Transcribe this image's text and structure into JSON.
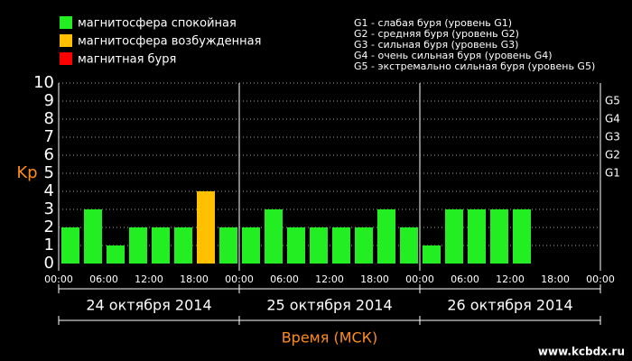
{
  "chart_data": {
    "type": "bar",
    "legend": [
      {
        "label": "магнитосфера спокойная",
        "color": "#22ee22"
      },
      {
        "label": "магнитосфера возбужденная",
        "color": "#ffc000"
      },
      {
        "label": "магнитная буря",
        "color": "#ff0000"
      }
    ],
    "storm_legend": [
      "G1 - слабая буря (уровень G1)",
      "G2 - средняя буря (уровень G2)",
      "G3 - сильная буря (уровень G3)",
      "G4 - очень сильная буря (уровень G4)",
      "G5 - экстремально сильная буря (уровень G5)"
    ],
    "y_label": "Kp",
    "x_label": "Время (МСК)",
    "values": [
      2,
      3,
      1,
      2,
      2,
      2,
      4,
      2,
      2,
      3,
      2,
      2,
      2,
      2,
      3,
      2,
      1,
      3,
      3,
      3,
      3,
      null,
      null,
      null
    ],
    "colors": [
      "#22ee22",
      "#22ee22",
      "#22ee22",
      "#22ee22",
      "#22ee22",
      "#22ee22",
      "#ffc000",
      "#22ee22",
      "#22ee22",
      "#22ee22",
      "#22ee22",
      "#22ee22",
      "#22ee22",
      "#22ee22",
      "#22ee22",
      "#22ee22",
      "#22ee22",
      "#22ee22",
      "#22ee22",
      "#22ee22",
      "#22ee22",
      null,
      null,
      null
    ],
    "ylim": [
      0,
      10
    ],
    "yticks": [
      0,
      1,
      2,
      3,
      4,
      5,
      6,
      7,
      8,
      9,
      10
    ],
    "g_ticks": [
      {
        "value": 5,
        "label": "G1"
      },
      {
        "value": 6,
        "label": "G2"
      },
      {
        "value": 7,
        "label": "G3"
      },
      {
        "value": 8,
        "label": "G4"
      },
      {
        "value": 9,
        "label": "G5"
      }
    ],
    "xticks": [
      "00:00",
      "06:00",
      "12:00",
      "18:00",
      "00:00",
      "06:00",
      "12:00",
      "18:00",
      "00:00",
      "06:00",
      "12:00",
      "18:00",
      "00:00"
    ],
    "days": [
      "24 октября 2014",
      "25 октября 2014",
      "26 октября 2014"
    ],
    "grid": true,
    "watermark": "www.kcbdx.ru"
  }
}
